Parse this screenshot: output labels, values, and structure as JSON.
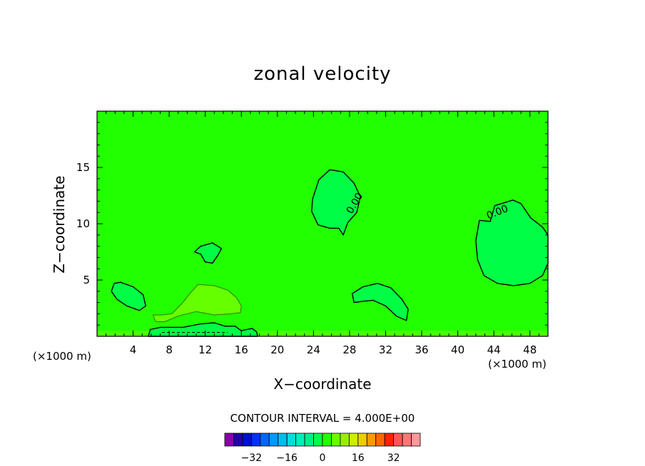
{
  "chart_data": {
    "type": "contour",
    "title": "zonal velocity",
    "xlabel": "X−coordinate",
    "ylabel": "Z−coordinate",
    "x_unit": "(×1000 m)",
    "y_unit": "(×1000 m)",
    "xlim": [
      0,
      50
    ],
    "ylim": [
      0,
      20
    ],
    "xticks": [
      4,
      8,
      12,
      16,
      20,
      24,
      28,
      32,
      36,
      40,
      44,
      48
    ],
    "xtick_labels": [
      "4",
      "8",
      "12",
      "16",
      "20",
      "24",
      "28",
      "32",
      "36",
      "40",
      "44",
      "48"
    ],
    "yticks": [
      5,
      10,
      15
    ],
    "ytick_labels": [
      "5",
      "10",
      "15"
    ],
    "background_color": "#22ff00",
    "contour_labels": [
      {
        "text": "0.00",
        "x": 28.6,
        "z": 11.8,
        "rotation": -60
      },
      {
        "text": "0.00",
        "x": 44.4,
        "z": 11.0,
        "rotation": -22
      }
    ],
    "regions": [
      {
        "name": "negative-cell-center",
        "fill": "#00ff44",
        "outline": true,
        "points": [
          [
            23.9,
            12.2
          ],
          [
            24.6,
            13.9
          ],
          [
            25.8,
            14.8
          ],
          [
            27.3,
            14.6
          ],
          [
            28.5,
            13.6
          ],
          [
            29.2,
            12.4
          ],
          [
            28.8,
            11.0
          ],
          [
            27.8,
            10.1
          ],
          [
            27.3,
            9.0
          ],
          [
            26.8,
            9.6
          ],
          [
            25.8,
            9.6
          ],
          [
            24.5,
            9.9
          ],
          [
            23.8,
            11.1
          ]
        ]
      },
      {
        "name": "negative-cell-right",
        "fill": "#00ff44",
        "outline": true,
        "points": [
          [
            42.4,
            10.3
          ],
          [
            43.6,
            10.2
          ],
          [
            44.1,
            11.6
          ],
          [
            46.1,
            12.1
          ],
          [
            47.0,
            11.8
          ],
          [
            48.1,
            10.5
          ],
          [
            49.4,
            9.7
          ],
          [
            50.0,
            9.0
          ],
          [
            50.0,
            6.5
          ],
          [
            49.4,
            5.4
          ],
          [
            48.0,
            4.7
          ],
          [
            46.2,
            4.5
          ],
          [
            44.4,
            4.7
          ],
          [
            42.9,
            5.4
          ],
          [
            42.2,
            6.8
          ],
          [
            42.0,
            8.5
          ]
        ]
      },
      {
        "name": "negative-cell-small",
        "fill": "#00ff44",
        "outline": true,
        "points": [
          [
            10.8,
            7.5
          ],
          [
            11.5,
            8.0
          ],
          [
            12.8,
            8.3
          ],
          [
            13.8,
            7.8
          ],
          [
            13.4,
            7.2
          ],
          [
            12.8,
            6.5
          ],
          [
            12.0,
            6.6
          ],
          [
            11.5,
            7.3
          ]
        ]
      },
      {
        "name": "negative-cell-left",
        "fill": "#00ff44",
        "outline": true,
        "points": [
          [
            1.6,
            4.0
          ],
          [
            1.9,
            4.7
          ],
          [
            2.6,
            4.8
          ],
          [
            4.0,
            4.4
          ],
          [
            5.1,
            3.7
          ],
          [
            5.4,
            2.7
          ],
          [
            4.7,
            2.3
          ],
          [
            3.3,
            2.7
          ],
          [
            2.2,
            3.3
          ]
        ]
      },
      {
        "name": "negative-cell-lower-center",
        "fill": "#00ff44",
        "outline": true,
        "points": [
          [
            28.3,
            3.8
          ],
          [
            29.5,
            4.4
          ],
          [
            31.1,
            4.7
          ],
          [
            32.6,
            4.3
          ],
          [
            33.8,
            3.3
          ],
          [
            34.5,
            2.4
          ],
          [
            34.3,
            1.4
          ],
          [
            33.2,
            1.8
          ],
          [
            32.0,
            2.7
          ],
          [
            30.6,
            3.2
          ],
          [
            29.4,
            3.1
          ],
          [
            28.5,
            3.0
          ]
        ]
      },
      {
        "name": "positive-cell-low",
        "fill": "#66ff00",
        "outline": false,
        "points": [
          [
            6.2,
            1.9
          ],
          [
            7.2,
            1.9
          ],
          [
            8.3,
            2.0
          ],
          [
            9.4,
            2.9
          ],
          [
            10.4,
            3.9
          ],
          [
            11.2,
            4.6
          ],
          [
            13.0,
            4.5
          ],
          [
            14.5,
            4.1
          ],
          [
            15.5,
            3.4
          ],
          [
            16.0,
            2.7
          ],
          [
            15.9,
            2.1
          ],
          [
            14.8,
            2.0
          ],
          [
            13.0,
            1.9
          ],
          [
            11.0,
            2.2
          ],
          [
            9.0,
            1.8
          ],
          [
            7.5,
            1.3
          ],
          [
            6.5,
            1.3
          ]
        ]
      },
      {
        "name": "negative-band-bottom",
        "fill": "#00ff44",
        "outline": true,
        "points": [
          [
            5.7,
            0.0
          ],
          [
            5.9,
            0.6
          ],
          [
            7.0,
            0.8
          ],
          [
            9.5,
            0.8
          ],
          [
            11.5,
            1.1
          ],
          [
            13.0,
            1.2
          ],
          [
            14.2,
            0.9
          ],
          [
            15.3,
            0.9
          ],
          [
            16.0,
            0.5
          ],
          [
            17.2,
            0.7
          ],
          [
            17.7,
            0.4
          ],
          [
            17.8,
            0.0
          ]
        ]
      }
    ],
    "colorbar": {
      "interval_label": "CONTOUR INTERVAL = 4.000E+00",
      "colors": [
        "#8800aa",
        "#2200aa",
        "#0011cc",
        "#0033ee",
        "#0066ff",
        "#0099ff",
        "#00bbee",
        "#00dddd",
        "#00eebb",
        "#00ee88",
        "#00ff44",
        "#22ff00",
        "#66ff00",
        "#99ee00",
        "#ccee00",
        "#eecc00",
        "#ff9900",
        "#ff6600",
        "#ff2200",
        "#ff5555",
        "#ff7777",
        "#ff9999"
      ],
      "ticks": [
        -32,
        -16,
        0,
        16,
        32
      ],
      "tick_labels": [
        "−32",
        "−16",
        "0",
        "16",
        "32"
      ]
    }
  }
}
